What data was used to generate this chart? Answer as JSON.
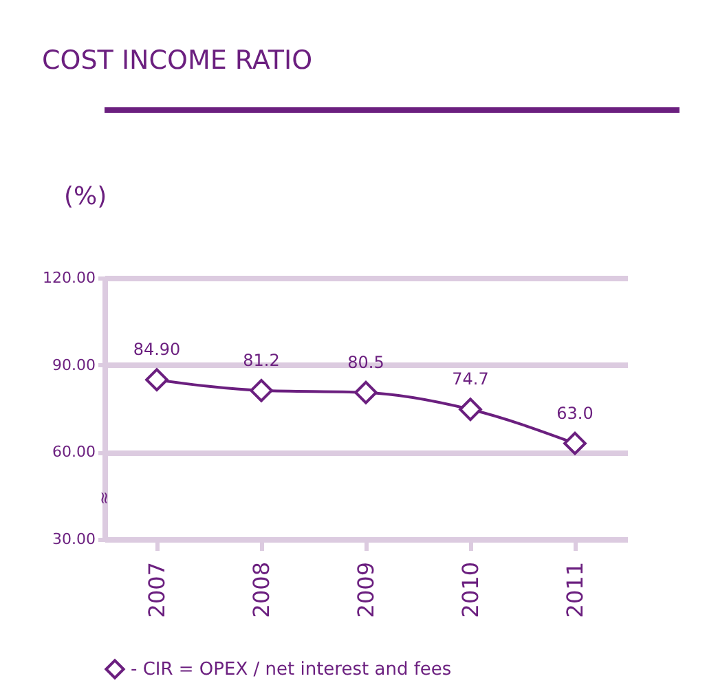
{
  "chart_data": {
    "type": "line",
    "title": "COST INCOME RATIO",
    "ylabel": "(%)",
    "categories": [
      "2007",
      "2008",
      "2009",
      "2010",
      "2011"
    ],
    "series": [
      {
        "name": "- CIR = OPEX / net interest and fees",
        "color": "#6b1f7f",
        "values": [
          84.9,
          81.2,
          80.5,
          74.7,
          63.0
        ],
        "value_labels": [
          "84.90",
          "81.2",
          "80.5",
          "74.7",
          "63.0"
        ]
      }
    ],
    "ylim": [
      30,
      120
    ],
    "yticks": [
      {
        "value": 30,
        "label": "30.00"
      },
      {
        "value": 60,
        "label": "60.00"
      },
      {
        "value": 90,
        "label": "90.00"
      },
      {
        "value": 120,
        "label": "120.00"
      }
    ],
    "annotations": [
      "≈"
    ],
    "grid": "y",
    "legend": "bottom",
    "marker": "diamond",
    "line_style": "solid"
  }
}
